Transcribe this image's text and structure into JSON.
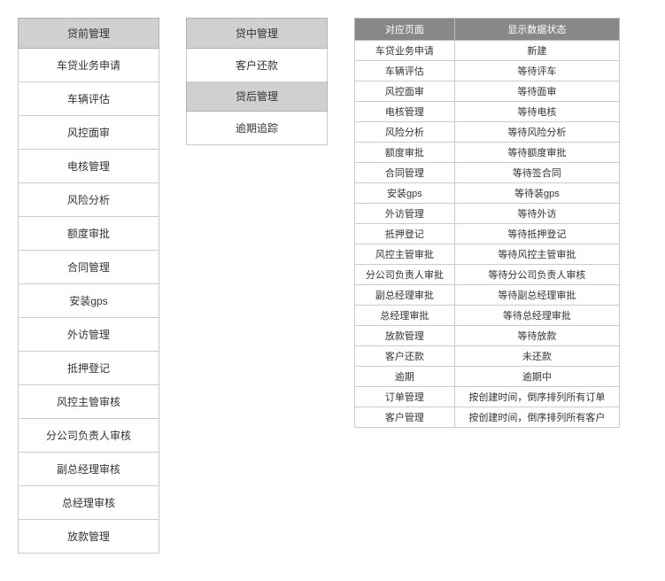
{
  "left": {
    "header": "贷前管理",
    "items": [
      "车贷业务申请",
      "车辆评估",
      "风控面审",
      "电核管理",
      "风险分析",
      "额度审批",
      "合同管理",
      "安装gps",
      "外访管理",
      "抵押登记",
      "风控主管审核",
      "分公司负责人审核",
      "副总经理审核",
      "总经理审核",
      "放款管理"
    ]
  },
  "mid": {
    "sections": [
      {
        "header": "贷中管理",
        "items": [
          "客户还款"
        ]
      },
      {
        "header": "贷后管理",
        "items": [
          "逾期追踪"
        ]
      }
    ]
  },
  "table": {
    "columns": [
      "对应页面",
      "显示数据状态"
    ],
    "rows": [
      [
        "车贷业务申请",
        "新建"
      ],
      [
        "车辆评估",
        "等待评车"
      ],
      [
        "风控面审",
        "等待面审"
      ],
      [
        "电核管理",
        "等待电核"
      ],
      [
        "风险分析",
        "等待风险分析"
      ],
      [
        "额度审批",
        "等待额度审批"
      ],
      [
        "合同管理",
        "等待签合同"
      ],
      [
        "安装gps",
        "等待装gps"
      ],
      [
        "外访管理",
        "等待外访"
      ],
      [
        "抵押登记",
        "等待抵押登记"
      ],
      [
        "风控主管审批",
        "等待风控主管审批"
      ],
      [
        "分公司负责人审批",
        "等待分公司负责人审核"
      ],
      [
        "副总经理审批",
        "等待副总经理审批"
      ],
      [
        "总经理审批",
        "等待总经理审批"
      ],
      [
        "放款管理",
        "等待放款"
      ],
      [
        "客户还款",
        "未还款"
      ],
      [
        "逾期",
        "逾期中"
      ],
      [
        "订单管理",
        "按创建时间，倒序排列所有订单"
      ],
      [
        "客户管理",
        "按创建时间，倒序排列所有客户"
      ]
    ]
  },
  "style": {
    "header_bg": "#d0d0d0",
    "header_border": "#b0b0b0",
    "item_bg": "#ffffff",
    "item_border": "#cccccc",
    "table_header_bg": "#888888",
    "table_header_fg": "#ffffff",
    "text_color": "#333333",
    "font_size_list": 12,
    "font_size_table": 11
  }
}
